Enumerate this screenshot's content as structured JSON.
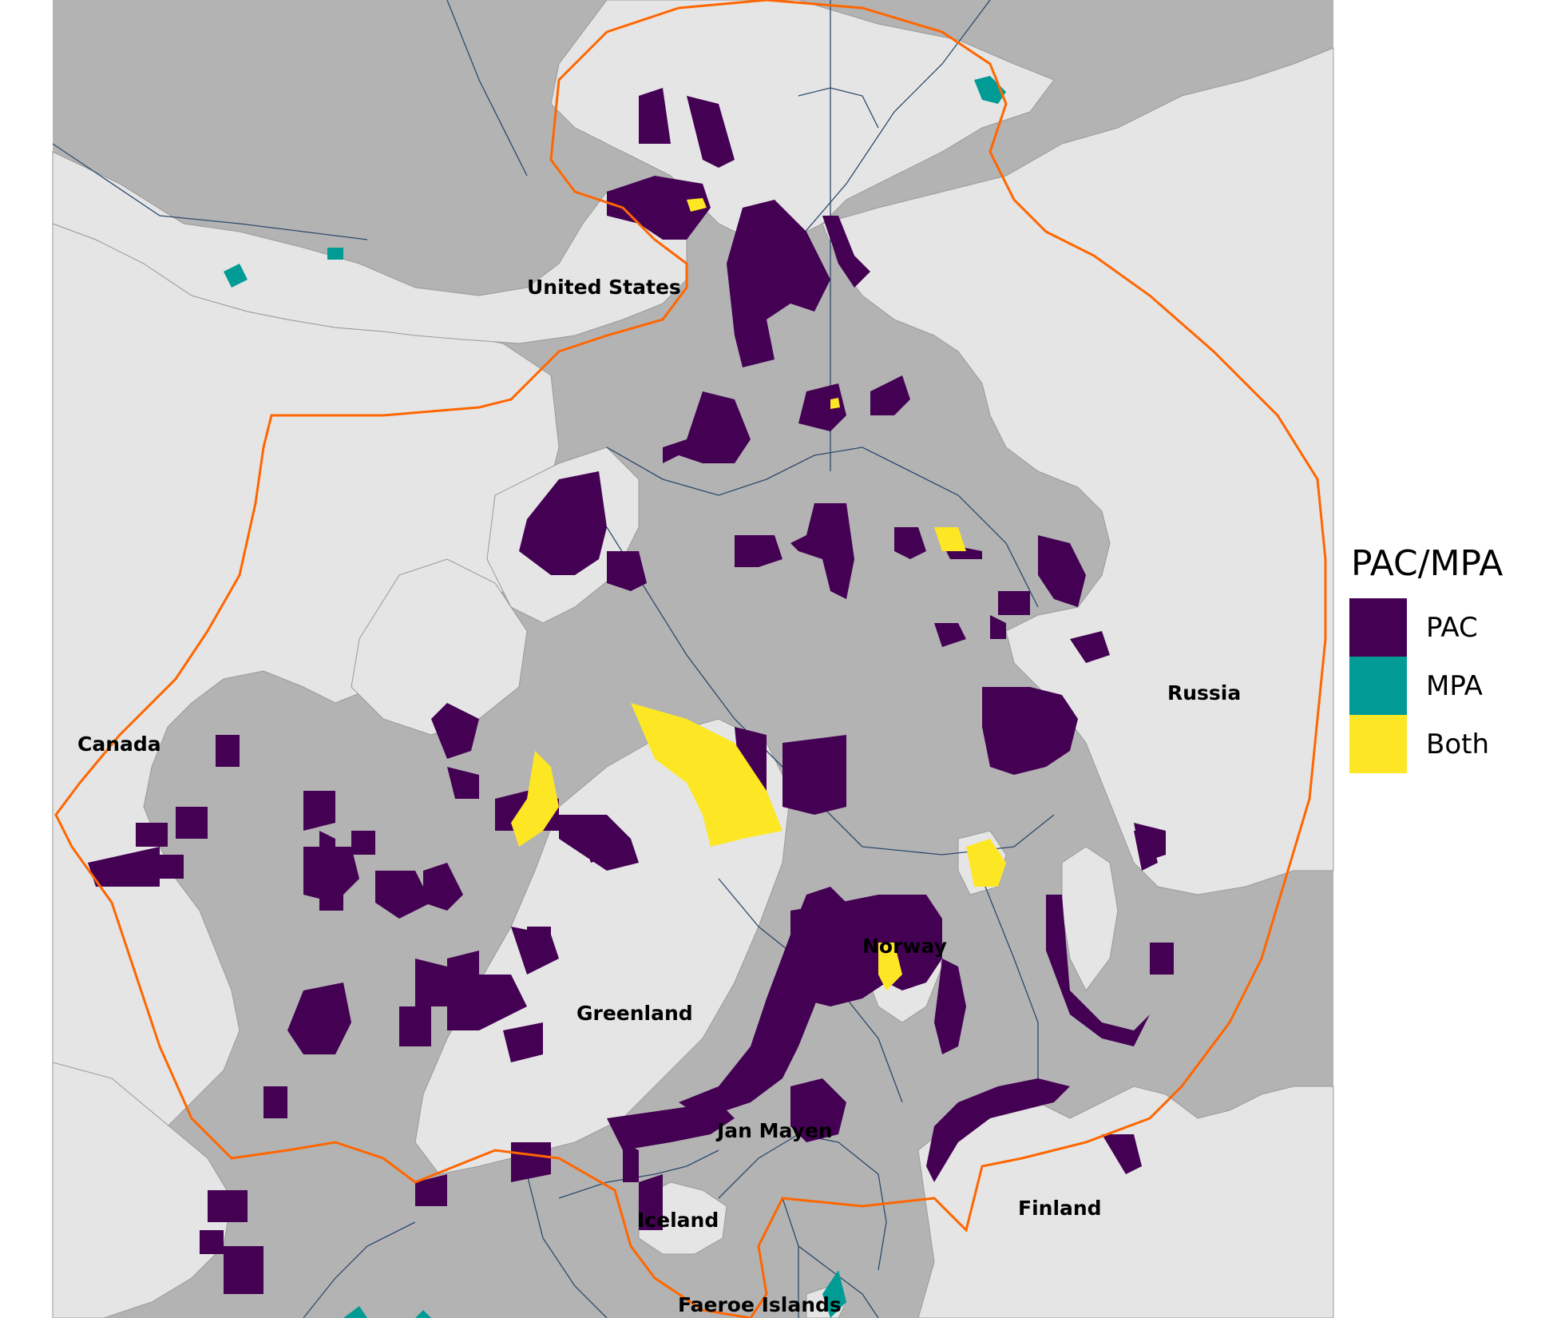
{
  "map": {
    "labels": {
      "united_states": "United States",
      "canada": "Canada",
      "russia": "Russia",
      "greenland": "Greenland",
      "norway": "Norway",
      "jan_mayen": "Jan Mayen",
      "iceland": "Iceland",
      "finland": "Finland",
      "faroe_islands": "Faeroe Islands"
    },
    "colors": {
      "ocean": "#b3b3b3",
      "land": "#e5e5e5",
      "pac": "#440154",
      "mpa": "#009b95",
      "both": "#fde725",
      "boundary": "#ff6600",
      "eez_line": "#2c4a6b"
    }
  },
  "legend": {
    "title": "PAC/MPA",
    "items": [
      {
        "label": "PAC",
        "color": "#440154"
      },
      {
        "label": "MPA",
        "color": "#009b95"
      },
      {
        "label": "Both",
        "color": "#fde725"
      }
    ]
  }
}
